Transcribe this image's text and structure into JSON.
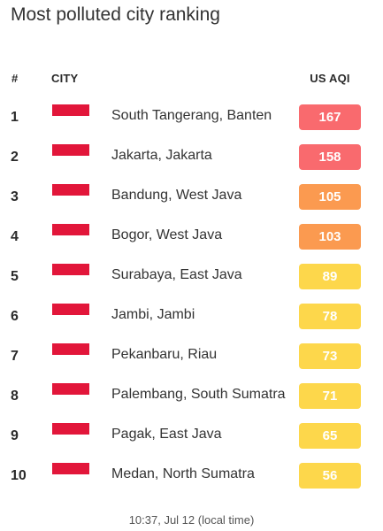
{
  "title": "Most polluted city ranking",
  "headers": {
    "rank": "#",
    "city": "CITY",
    "aqi": "US AQI"
  },
  "flag_colors": {
    "top": "#e2163a",
    "bottom": "#ffffff"
  },
  "rows": [
    {
      "rank": "1",
      "city": "South Tangerang, Banten",
      "aqi": "167",
      "color": "#f96a6e"
    },
    {
      "rank": "2",
      "city": "Jakarta, Jakarta",
      "aqi": "158",
      "color": "#f96a6e"
    },
    {
      "rank": "3",
      "city": "Bandung, West Java",
      "aqi": "105",
      "color": "#fb9a50"
    },
    {
      "rank": "4",
      "city": "Bogor, West Java",
      "aqi": "103",
      "color": "#fb9a50"
    },
    {
      "rank": "5",
      "city": "Surabaya, East Java",
      "aqi": "89",
      "color": "#fdd74b"
    },
    {
      "rank": "6",
      "city": "Jambi, Jambi",
      "aqi": "78",
      "color": "#fdd74b"
    },
    {
      "rank": "7",
      "city": "Pekanbaru, Riau",
      "aqi": "73",
      "color": "#fdd74b"
    },
    {
      "rank": "8",
      "city": "Palembang, South Sumatra",
      "aqi": "71",
      "color": "#fdd74b"
    },
    {
      "rank": "9",
      "city": "Pagak, East Java",
      "aqi": "65",
      "color": "#fdd74b"
    },
    {
      "rank": "10",
      "city": "Medan, North Sumatra",
      "aqi": "56",
      "color": "#fdd74b"
    }
  ],
  "footer": "10:37, Jul 12 (local time)"
}
